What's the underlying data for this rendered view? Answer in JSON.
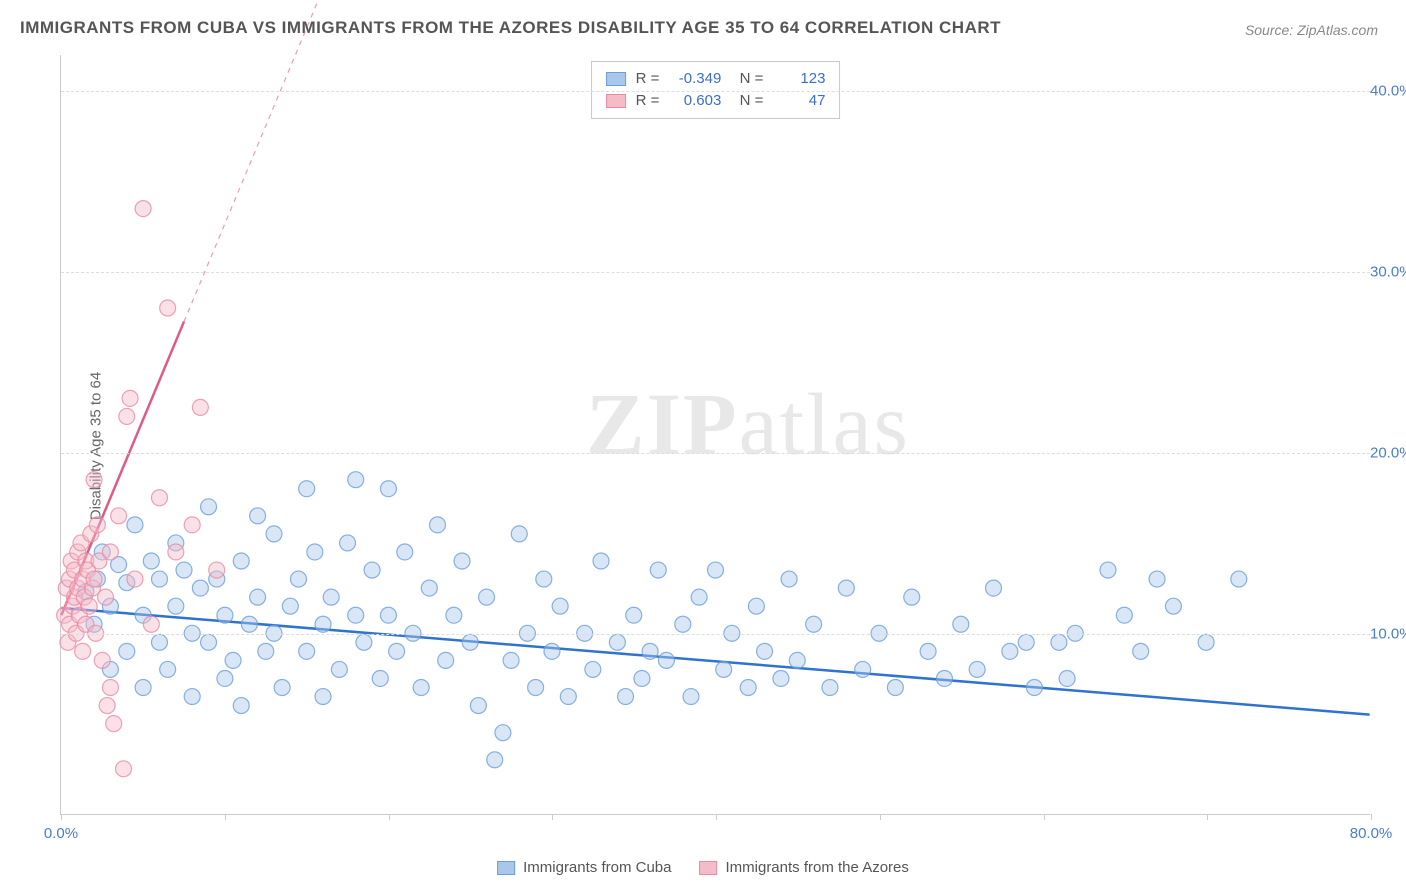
{
  "title": "IMMIGRANTS FROM CUBA VS IMMIGRANTS FROM THE AZORES DISABILITY AGE 35 TO 64 CORRELATION CHART",
  "source": "Source: ZipAtlas.com",
  "ylabel": "Disability Age 35 to 64",
  "watermark_a": "ZIP",
  "watermark_b": "atlas",
  "chart": {
    "type": "scatter",
    "background_color": "#ffffff",
    "grid_color": "#dddddd",
    "axis_color": "#cccccc",
    "marker_radius": 8,
    "marker_opacity": 0.45,
    "marker_stroke_opacity": 0.8,
    "xlim": [
      0,
      80
    ],
    "ylim": [
      0,
      42
    ],
    "xticks": [
      0,
      10,
      20,
      30,
      40,
      50,
      60,
      70,
      80
    ],
    "xtick_labels": {
      "0": "0.0%",
      "80": "80.0%"
    },
    "yticks": [
      10,
      20,
      30,
      40
    ],
    "ytick_labels": {
      "10": "10.0%",
      "20": "20.0%",
      "30": "30.0%",
      "40": "40.0%"
    },
    "series": [
      {
        "name": "Immigrants from Cuba",
        "color_fill": "#a9c7ea",
        "color_stroke": "#6b9fd8",
        "r_value": "-0.349",
        "n_value": "123",
        "trend": {
          "x1": 0,
          "y1": 11.4,
          "x2": 80,
          "y2": 5.5,
          "dashed_from_x": null,
          "solid_color": "#2f72d0",
          "width": 2.5
        },
        "points": [
          [
            1.5,
            12.3
          ],
          [
            2,
            10.5
          ],
          [
            2.2,
            13.0
          ],
          [
            2.5,
            14.5
          ],
          [
            3,
            11.5
          ],
          [
            3,
            8.0
          ],
          [
            3.5,
            13.8
          ],
          [
            4,
            9.0
          ],
          [
            4,
            12.8
          ],
          [
            4.5,
            16.0
          ],
          [
            5,
            7.0
          ],
          [
            5,
            11.0
          ],
          [
            5.5,
            14.0
          ],
          [
            6,
            9.5
          ],
          [
            6,
            13.0
          ],
          [
            6.5,
            8.0
          ],
          [
            7,
            11.5
          ],
          [
            7,
            15.0
          ],
          [
            7.5,
            13.5
          ],
          [
            8,
            6.5
          ],
          [
            8,
            10.0
          ],
          [
            8.5,
            12.5
          ],
          [
            9,
            17.0
          ],
          [
            9,
            9.5
          ],
          [
            9.5,
            13.0
          ],
          [
            10,
            7.5
          ],
          [
            10,
            11.0
          ],
          [
            10.5,
            8.5
          ],
          [
            11,
            14.0
          ],
          [
            11,
            6.0
          ],
          [
            11.5,
            10.5
          ],
          [
            12,
            16.5
          ],
          [
            12,
            12.0
          ],
          [
            12.5,
            9.0
          ],
          [
            13,
            15.5
          ],
          [
            13,
            10.0
          ],
          [
            13.5,
            7.0
          ],
          [
            14,
            11.5
          ],
          [
            14.5,
            13.0
          ],
          [
            15,
            18.0
          ],
          [
            15,
            9.0
          ],
          [
            15.5,
            14.5
          ],
          [
            16,
            10.5
          ],
          [
            16,
            6.5
          ],
          [
            16.5,
            12.0
          ],
          [
            17,
            8.0
          ],
          [
            17.5,
            15.0
          ],
          [
            18,
            11.0
          ],
          [
            18,
            18.5
          ],
          [
            18.5,
            9.5
          ],
          [
            19,
            13.5
          ],
          [
            19.5,
            7.5
          ],
          [
            20,
            11.0
          ],
          [
            20,
            18.0
          ],
          [
            20.5,
            9.0
          ],
          [
            21,
            14.5
          ],
          [
            21.5,
            10.0
          ],
          [
            22,
            7.0
          ],
          [
            22.5,
            12.5
          ],
          [
            23,
            16.0
          ],
          [
            23.5,
            8.5
          ],
          [
            24,
            11.0
          ],
          [
            24.5,
            14.0
          ],
          [
            25,
            9.5
          ],
          [
            25.5,
            6.0
          ],
          [
            26,
            12.0
          ],
          [
            26.5,
            3.0
          ],
          [
            27,
            4.5
          ],
          [
            27.5,
            8.5
          ],
          [
            28,
            15.5
          ],
          [
            28.5,
            10.0
          ],
          [
            29,
            7.0
          ],
          [
            29.5,
            13.0
          ],
          [
            30,
            9.0
          ],
          [
            30.5,
            11.5
          ],
          [
            31,
            6.5
          ],
          [
            32,
            10.0
          ],
          [
            32.5,
            8.0
          ],
          [
            33,
            14.0
          ],
          [
            34,
            9.5
          ],
          [
            34.5,
            6.5
          ],
          [
            35,
            11.0
          ],
          [
            35.5,
            7.5
          ],
          [
            36,
            9.0
          ],
          [
            36.5,
            13.5
          ],
          [
            37,
            8.5
          ],
          [
            38,
            10.5
          ],
          [
            38.5,
            6.5
          ],
          [
            39,
            12.0
          ],
          [
            40,
            13.5
          ],
          [
            40.5,
            8.0
          ],
          [
            41,
            10.0
          ],
          [
            42,
            7.0
          ],
          [
            42.5,
            11.5
          ],
          [
            43,
            9.0
          ],
          [
            44,
            7.5
          ],
          [
            44.5,
            13.0
          ],
          [
            45,
            8.5
          ],
          [
            46,
            10.5
          ],
          [
            47,
            7.0
          ],
          [
            48,
            12.5
          ],
          [
            49,
            8.0
          ],
          [
            50,
            10.0
          ],
          [
            51,
            7.0
          ],
          [
            52,
            12.0
          ],
          [
            53,
            9.0
          ],
          [
            54,
            7.5
          ],
          [
            55,
            10.5
          ],
          [
            56,
            8.0
          ],
          [
            57,
            12.5
          ],
          [
            58,
            9.0
          ],
          [
            59,
            9.5
          ],
          [
            59.5,
            7.0
          ],
          [
            61,
            9.5
          ],
          [
            61.5,
            7.5
          ],
          [
            62,
            10.0
          ],
          [
            64,
            13.5
          ],
          [
            65,
            11.0
          ],
          [
            66,
            9.0
          ],
          [
            67,
            13.0
          ],
          [
            68,
            11.5
          ],
          [
            70,
            9.5
          ],
          [
            72,
            13.0
          ]
        ]
      },
      {
        "name": "Immigrants from the Azores",
        "color_fill": "#f4bcc9",
        "color_stroke": "#e88ba3",
        "r_value": "0.603",
        "n_value": "47",
        "trend": {
          "x1": 0,
          "y1": 11.0,
          "x2": 18,
          "y2": 50,
          "dashed_from_x": 7.5,
          "solid_color": "#e05a86",
          "width": 2.5
        },
        "points": [
          [
            0.2,
            11.0
          ],
          [
            0.3,
            12.5
          ],
          [
            0.4,
            9.5
          ],
          [
            0.5,
            13.0
          ],
          [
            0.5,
            10.5
          ],
          [
            0.6,
            14.0
          ],
          [
            0.7,
            11.5
          ],
          [
            0.8,
            12.0
          ],
          [
            0.8,
            13.5
          ],
          [
            0.9,
            10.0
          ],
          [
            1.0,
            14.5
          ],
          [
            1.0,
            12.5
          ],
          [
            1.1,
            11.0
          ],
          [
            1.2,
            15.0
          ],
          [
            1.3,
            13.0
          ],
          [
            1.3,
            9.0
          ],
          [
            1.4,
            12.0
          ],
          [
            1.5,
            14.0
          ],
          [
            1.5,
            10.5
          ],
          [
            1.6,
            13.5
          ],
          [
            1.7,
            11.5
          ],
          [
            1.8,
            15.5
          ],
          [
            1.9,
            12.5
          ],
          [
            2.0,
            18.5
          ],
          [
            2.0,
            13.0
          ],
          [
            2.1,
            10.0
          ],
          [
            2.2,
            16.0
          ],
          [
            2.3,
            14.0
          ],
          [
            2.5,
            8.5
          ],
          [
            2.7,
            12.0
          ],
          [
            2.8,
            6.0
          ],
          [
            3.0,
            14.5
          ],
          [
            3.0,
            7.0
          ],
          [
            3.2,
            5.0
          ],
          [
            3.5,
            16.5
          ],
          [
            3.8,
            2.5
          ],
          [
            4.0,
            22.0
          ],
          [
            4.2,
            23.0
          ],
          [
            4.5,
            13.0
          ],
          [
            5.0,
            33.5
          ],
          [
            5.5,
            10.5
          ],
          [
            6.0,
            17.5
          ],
          [
            6.5,
            28.0
          ],
          [
            7.0,
            14.5
          ],
          [
            8.0,
            16.0
          ],
          [
            8.5,
            22.5
          ],
          [
            9.5,
            13.5
          ]
        ]
      }
    ]
  },
  "legend_bottom": [
    {
      "label": "Immigrants from Cuba",
      "fill": "#a9c7ea",
      "stroke": "#6b9fd8"
    },
    {
      "label": "Immigrants from the Azores",
      "fill": "#f4bcc9",
      "stroke": "#e88ba3"
    }
  ]
}
